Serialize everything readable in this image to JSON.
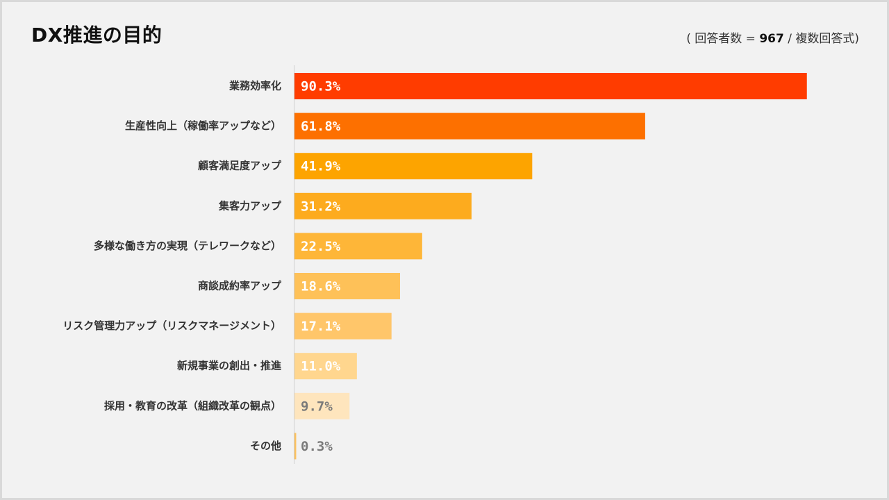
{
  "title": "DX推進の目的",
  "note": {
    "open": "( 回答者数 = ",
    "n": "967",
    "close": " / 複数回答式)"
  },
  "chart_data": {
    "type": "bar",
    "orientation": "horizontal",
    "title": "DX推進の目的",
    "xlabel": "",
    "ylabel": "",
    "xlim": [
      0,
      100
    ],
    "unit": "%",
    "categories": [
      "業務効率化",
      "生産性向上（稼働率アップなど）",
      "顧客満足度アップ",
      "集客力アップ",
      "多様な働き方の実現（テレワークなど）",
      "商談成約率アップ",
      "リスク管理力アップ（リスクマネージメント）",
      "新規事業の創出・推進",
      "採用・教育の改革（組織改革の観点）",
      "その他"
    ],
    "values": [
      90.3,
      61.8,
      41.9,
      31.2,
      22.5,
      18.6,
      17.1,
      11.0,
      9.7,
      0.3
    ],
    "labels": [
      "90.3%",
      "61.8%",
      "41.9%",
      "31.2%",
      "22.5%",
      "18.6%",
      "17.1%",
      "11.0%",
      "9.7%",
      "0.3%"
    ],
    "colors": [
      "#ff3c00",
      "#fd7000",
      "#fda400",
      "#fdab1e",
      "#feb638",
      "#fec158",
      "#ffc66a",
      "#ffd68e",
      "#fee5bd",
      "#fdc15c"
    ],
    "label_colors": [
      "#ffffff",
      "#ffffff",
      "#ffffff",
      "#ffffff",
      "#ffffff",
      "#ffffff",
      "#ffffff",
      "#ffffff",
      "#7a7a7a",
      "#7a7a7a"
    ],
    "grid": false
  }
}
